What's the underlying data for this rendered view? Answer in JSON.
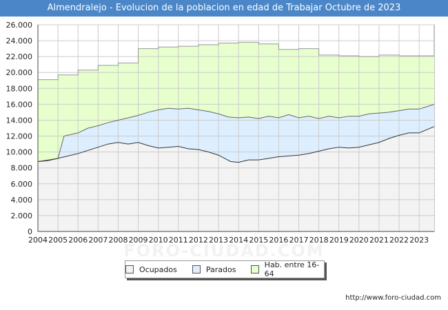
{
  "header": {
    "title": "Almendralejo - Evolucion de la poblacion en edad de Trabajar Octubre de 2023"
  },
  "footer": {
    "url": "http://www.foro-ciudad.com"
  },
  "watermark": {
    "text": "FORO-CIUDAD.COM"
  },
  "colors": {
    "ocupados": "#f3f3f3",
    "parados": "#ddeeff",
    "hab": "#e6ffcc",
    "line": "#333333",
    "grid": "#cccccc",
    "title_bg": "#4a86c8"
  },
  "legend": {
    "ocupados": "Ocupados",
    "parados": "Parados",
    "hab": "Hab. entre 16-64"
  },
  "chart_data": {
    "type": "area",
    "title": "Almendralejo - Evolucion de la poblacion en edad de Trabajar Octubre de 2023",
    "ylim": [
      0,
      26000
    ],
    "xlim": [
      2004,
      2023.75
    ],
    "yticks": [
      0,
      2000,
      4000,
      6000,
      8000,
      10000,
      12000,
      14000,
      16000,
      18000,
      20000,
      22000,
      24000,
      26000
    ],
    "ytick_labels": [
      "0",
      "2.000",
      "4.000",
      "6.000",
      "8.000",
      "10.000",
      "12.000",
      "14.000",
      "16.000",
      "18.000",
      "20.000",
      "22.000",
      "24.000",
      "26.000"
    ],
    "xticks": [
      "2004",
      "2005",
      "2006",
      "2007",
      "2008",
      "2009",
      "2010",
      "2011",
      "2012",
      "2013",
      "2014",
      "2015",
      "2016",
      "2017",
      "2018",
      "2019",
      "2020",
      "2021",
      "2022",
      "2023"
    ],
    "series": [
      {
        "name": "Hab. entre 16-64",
        "x": [
          2004.0,
          2005.0,
          2006.0,
          2007.0,
          2008.0,
          2009.0,
          2010.0,
          2011.0,
          2012.0,
          2013.0,
          2014.0,
          2015.0,
          2016.0,
          2017.0,
          2018.0,
          2019.0,
          2020.0,
          2021.0,
          2022.0,
          2023.0
        ],
        "values": [
          19100,
          19700,
          20300,
          20900,
          21200,
          23000,
          23200,
          23300,
          23500,
          23700,
          23800,
          23600,
          22900,
          23000,
          22200,
          22100,
          22000,
          22200,
          22100,
          22100
        ]
      },
      {
        "name": "Parados",
        "x": [
          2004.0,
          2005.0,
          2005.3,
          2006.0,
          2006.5,
          2007.0,
          2007.5,
          2008.0,
          2008.5,
          2009.0,
          2009.5,
          2010.0,
          2010.5,
          2011.0,
          2011.5,
          2012.0,
          2012.5,
          2013.0,
          2013.5,
          2014.0,
          2014.5,
          2015.0,
          2015.5,
          2016.0,
          2016.5,
          2017.0,
          2017.5,
          2018.0,
          2018.5,
          2019.0,
          2019.5,
          2020.0,
          2020.5,
          2021.0,
          2021.5,
          2022.0,
          2022.5,
          2023.0,
          2023.75
        ],
        "values": [
          8800,
          9200,
          12000,
          12400,
          13000,
          13300,
          13700,
          14000,
          14300,
          14600,
          15000,
          15300,
          15500,
          15400,
          15500,
          15300,
          15100,
          14800,
          14400,
          14300,
          14400,
          14200,
          14500,
          14300,
          14700,
          14300,
          14500,
          14200,
          14500,
          14300,
          14500,
          14500,
          14800,
          14900,
          15000,
          15200,
          15400,
          15400,
          16000
        ]
      },
      {
        "name": "Ocupados",
        "x": [
          2004.0,
          2004.5,
          2005.0,
          2005.5,
          2006.0,
          2006.5,
          2007.0,
          2007.5,
          2008.0,
          2008.5,
          2009.0,
          2009.5,
          2010.0,
          2010.5,
          2011.0,
          2011.5,
          2012.0,
          2012.5,
          2013.0,
          2013.3,
          2013.6,
          2014.0,
          2014.5,
          2015.0,
          2015.5,
          2016.0,
          2016.5,
          2017.0,
          2017.5,
          2018.0,
          2018.5,
          2019.0,
          2019.5,
          2020.0,
          2020.5,
          2021.0,
          2021.5,
          2022.0,
          2022.5,
          2023.0,
          2023.75
        ],
        "values": [
          8800,
          8900,
          9200,
          9500,
          9800,
          10200,
          10600,
          11000,
          11200,
          11000,
          11200,
          10800,
          10500,
          10600,
          10700,
          10400,
          10300,
          10000,
          9600,
          9200,
          8800,
          8700,
          9000,
          9000,
          9200,
          9400,
          9500,
          9600,
          9800,
          10100,
          10400,
          10600,
          10500,
          10600,
          10900,
          11200,
          11700,
          12100,
          12400,
          12400,
          13200
        ]
      }
    ]
  }
}
